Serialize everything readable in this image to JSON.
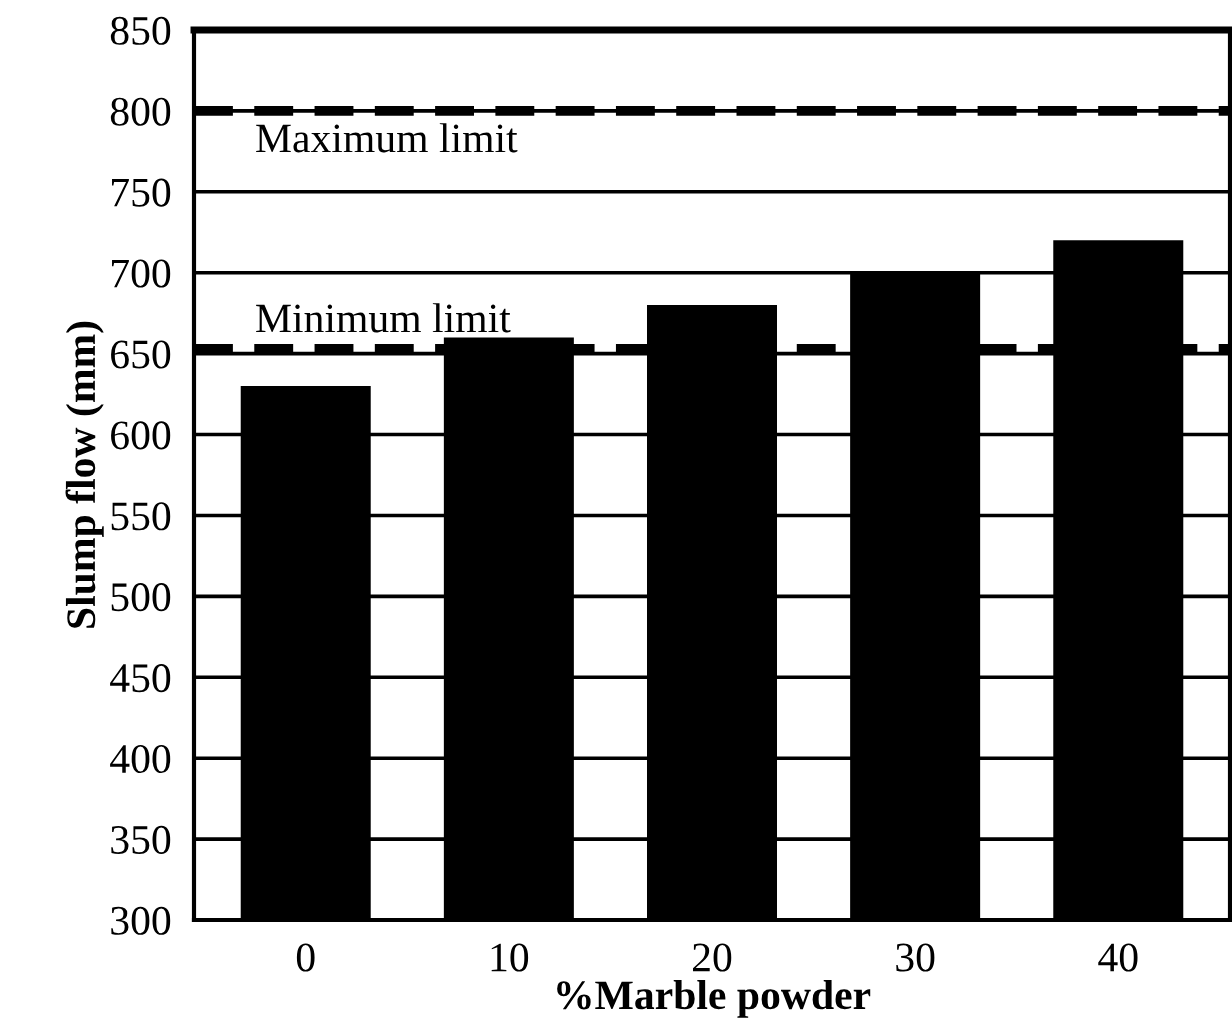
{
  "chart_data": {
    "type": "bar",
    "xlabel": "%Marble powder",
    "ylabel": "Slump flow (mm)",
    "categories": [
      "0",
      "10",
      "20",
      "30",
      "40"
    ],
    "values": [
      630,
      660,
      680,
      700,
      720
    ],
    "color": "#000000",
    "ylim": [
      300,
      850
    ],
    "yticks": [
      300,
      350,
      400,
      450,
      500,
      550,
      600,
      650,
      700,
      750,
      800,
      850
    ],
    "grid": "y",
    "legend": false,
    "ref_lines": [
      {
        "axis": "y",
        "value": 800,
        "label": "Maximum limit",
        "line_style": "dashed",
        "color": "#000000"
      },
      {
        "axis": "y",
        "value": 653,
        "label": "Minimum limit",
        "line_style": "dashed",
        "color": "#000000"
      }
    ]
  }
}
